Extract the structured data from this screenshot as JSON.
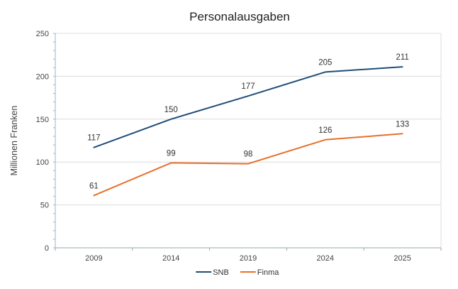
{
  "chart_data": {
    "type": "line",
    "title": "Personalausgaben",
    "xlabel": "",
    "ylabel": "Millionen Franken",
    "categories": [
      "2009",
      "2014",
      "2019",
      "2024",
      "2025"
    ],
    "ylim": [
      0,
      250
    ],
    "yticks": [
      0,
      50,
      100,
      150,
      200,
      250
    ],
    "grid": true,
    "legend_position": "bottom-center",
    "series": [
      {
        "name": "SNB",
        "color": "#1f4e79",
        "values": [
          117,
          150,
          177,
          205,
          211
        ]
      },
      {
        "name": "Finma",
        "color": "#e8702a",
        "values": [
          61,
          99,
          98,
          126,
          133
        ]
      }
    ]
  }
}
